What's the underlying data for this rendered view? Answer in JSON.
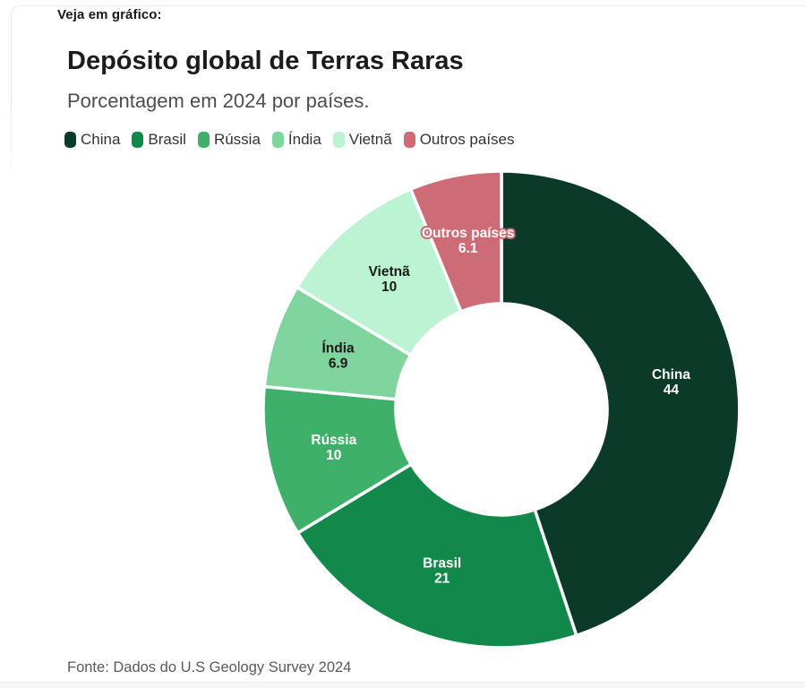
{
  "page": {
    "kicker": "Veja em gráfico:",
    "source": "Fonte: Dados do U.S Geology Survey 2024"
  },
  "chart_data": {
    "type": "pie",
    "subtype": "donut",
    "title": "Depósito global de Terras Raras",
    "subtitle": "Porcentagem em 2024 por países.",
    "unit": "percent of global rare-earth deposits, 2024",
    "legend_position": "top",
    "categories": [
      "China",
      "Brasil",
      "Rússia",
      "Índia",
      "Vietnã",
      "Outros países"
    ],
    "values": [
      44,
      21,
      10,
      6.9,
      10,
      6.1
    ],
    "series": [
      {
        "label": "China",
        "value": 44,
        "color": "#0c3a28",
        "label_color": "#ffffff",
        "halo": false
      },
      {
        "label": "Brasil",
        "value": 21,
        "color": "#12894b",
        "label_color": "#ffffff",
        "halo": false
      },
      {
        "label": "Rússia",
        "value": 10,
        "color": "#3fb06a",
        "label_color": "#ffffff",
        "halo": false
      },
      {
        "label": "Índia",
        "value": 6.9,
        "color": "#80d49e",
        "label_color": "#1a1a1a",
        "halo": false
      },
      {
        "label": "Vietnã",
        "value": 10,
        "color": "#bcf4d3",
        "label_color": "#1a1a1a",
        "halo": false
      },
      {
        "label": "Outros países",
        "value": 6.1,
        "color": "#cd6b76",
        "label_color": "#ffffff",
        "halo": true
      }
    ],
    "slice_gap_color": "#ffffff"
  }
}
